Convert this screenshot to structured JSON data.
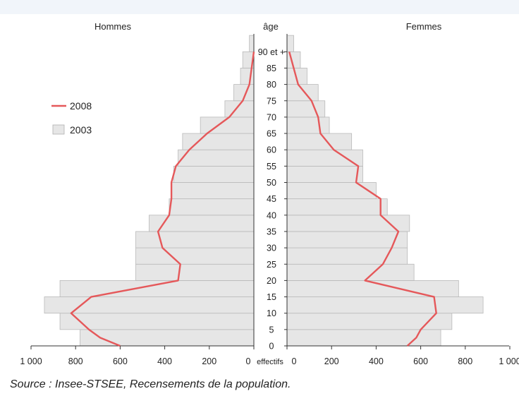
{
  "chart_data": {
    "type": "bar",
    "subtype": "population-pyramid",
    "left_label": "Hommes",
    "right_label": "Femmes",
    "center_label": "âge",
    "x_unit_label": "effectifs",
    "source": "Source : Insee-STSEE, Recensements de la population.",
    "age_groups": [
      "0",
      "5",
      "10",
      "15",
      "20",
      "25",
      "30",
      "35",
      "40",
      "45",
      "50",
      "55",
      "60",
      "65",
      "70",
      "75",
      "80",
      "85",
      "90 et +"
    ],
    "age_ticks": [
      "0",
      "5",
      "10",
      "15",
      "20",
      "25",
      "30",
      "35",
      "40",
      "45",
      "50",
      "55",
      "60",
      "65",
      "70",
      "75",
      "80",
      "85",
      "90 et +"
    ],
    "x_ticks_left": [
      "1 000",
      "800",
      "600",
      "400",
      "200",
      "0"
    ],
    "x_ticks_right": [
      "0",
      "200",
      "400",
      "600",
      "800",
      "1 000"
    ],
    "xlim": [
      0,
      1000
    ],
    "series": [
      {
        "name": "2003",
        "style": "bars",
        "color": "#e6e6e6",
        "hommes": [
          780,
          870,
          940,
          870,
          530,
          530,
          530,
          470,
          380,
          370,
          360,
          340,
          320,
          240,
          130,
          90,
          60,
          50,
          20
        ],
        "femmes": [
          690,
          740,
          880,
          770,
          570,
          540,
          540,
          550,
          450,
          400,
          340,
          340,
          290,
          190,
          170,
          140,
          90,
          60,
          30
        ]
      },
      {
        "name": "2008",
        "style": "line",
        "color": "#e5585a",
        "hommes_points": [
          [
            0,
            600
          ],
          [
            2.5,
            690
          ],
          [
            5,
            740
          ],
          [
            10,
            820
          ],
          [
            15,
            730
          ],
          [
            20,
            340
          ],
          [
            25,
            330
          ],
          [
            30,
            410
          ],
          [
            35,
            430
          ],
          [
            40,
            380
          ],
          [
            45,
            370
          ],
          [
            50,
            370
          ],
          [
            55,
            350
          ],
          [
            60,
            290
          ],
          [
            65,
            210
          ],
          [
            70,
            110
          ],
          [
            75,
            50
          ],
          [
            80,
            20
          ],
          [
            85,
            10
          ],
          [
            90,
            0
          ]
        ],
        "femmes_points": [
          [
            0,
            540
          ],
          [
            2.5,
            580
          ],
          [
            5,
            600
          ],
          [
            10,
            670
          ],
          [
            15,
            660
          ],
          [
            20,
            350
          ],
          [
            25,
            430
          ],
          [
            30,
            470
          ],
          [
            35,
            500
          ],
          [
            40,
            420
          ],
          [
            45,
            420
          ],
          [
            50,
            310
          ],
          [
            55,
            320
          ],
          [
            60,
            210
          ],
          [
            65,
            150
          ],
          [
            70,
            140
          ],
          [
            75,
            110
          ],
          [
            80,
            50
          ],
          [
            85,
            30
          ],
          [
            90,
            10
          ]
        ]
      }
    ],
    "legend": {
      "placement": "top-left",
      "entries": [
        {
          "label": "2008",
          "kind": "line",
          "color": "#e5585a"
        },
        {
          "label": "2003",
          "kind": "box",
          "color": "#e6e6e6"
        }
      ]
    }
  }
}
